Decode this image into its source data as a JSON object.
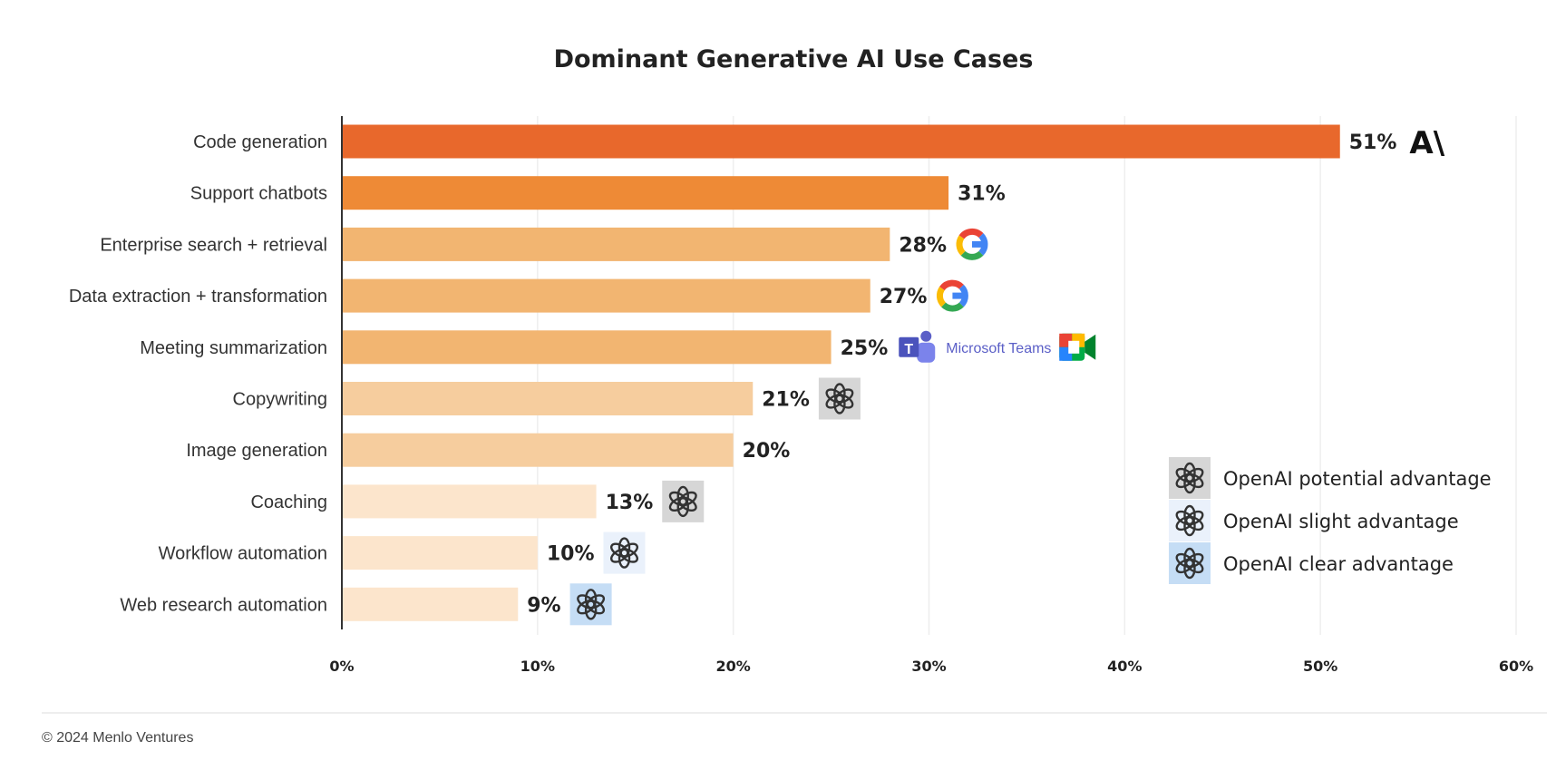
{
  "chart_data": {
    "type": "bar",
    "orientation": "horizontal",
    "title": "Dominant Generative AI Use Cases",
    "categories": [
      "Code generation",
      "Support chatbots",
      "Enterprise search + retrieval",
      "Data extraction + transformation",
      "Meeting summarization",
      "Copywriting",
      "Image generation",
      "Coaching",
      "Workflow automation",
      "Web research automation"
    ],
    "values": [
      51,
      31,
      28,
      27,
      25,
      21,
      20,
      13,
      10,
      9
    ],
    "value_labels": [
      "51%",
      "31%",
      "28%",
      "27%",
      "25%",
      "21%",
      "20%",
      "13%",
      "10%",
      "9%"
    ],
    "bar_colors": [
      "#E8682C",
      "#EE8A36",
      "#F2B571",
      "#F2B571",
      "#F2B571",
      "#F6CD9E",
      "#F6CD9E",
      "#FCE5CC",
      "#FCE5CC",
      "#FCE5CC"
    ],
    "annotations": [
      [
        "anthropic-logo"
      ],
      [],
      [
        "google-logo"
      ],
      [
        "google-logo"
      ],
      [
        "microsoft-teams-logo",
        "google-meet-logo"
      ],
      [
        "openai-potential"
      ],
      [],
      [
        "openai-potential"
      ],
      [
        "openai-slight"
      ],
      [
        "openai-clear"
      ]
    ],
    "teams_label": "Microsoft Teams",
    "anthropic_mark": "A\\",
    "xlim": [
      0,
      60
    ],
    "xticks": [
      "0%",
      "10%",
      "20%",
      "30%",
      "40%",
      "50%",
      "60%"
    ],
    "grid": true,
    "legend": {
      "placement": "bottom-right",
      "items": [
        {
          "key": "openai-potential",
          "label": "OpenAI potential advantage",
          "color": "#D6D6D6"
        },
        {
          "key": "openai-slight",
          "label": "OpenAI slight advantage",
          "color": "#EAF1FB"
        },
        {
          "key": "openai-clear",
          "label": "OpenAI clear advantage",
          "color": "#C5DDF5"
        }
      ]
    }
  },
  "footer": "© 2024 Menlo Ventures"
}
